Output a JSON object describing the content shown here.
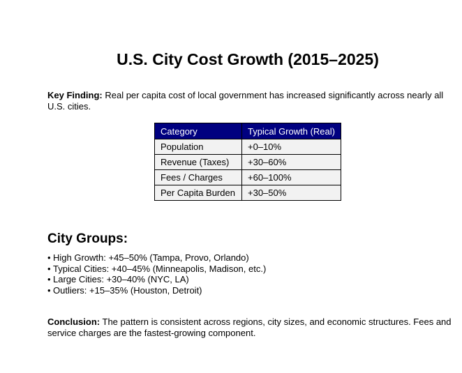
{
  "document": {
    "title": "U.S. City Cost Growth (2015–2025)",
    "key_finding": {
      "label": "Key Finding:",
      "text": "Real per capita cost of local government has increased significantly across nearly all U.S. cities."
    },
    "table": {
      "headers": [
        "Category",
        "Typical Growth (Real)"
      ],
      "rows": [
        [
          "Population",
          "+0–10%"
        ],
        [
          "Revenue (Taxes)",
          "+30–60%"
        ],
        [
          "Fees / Charges",
          "+60–100%"
        ],
        [
          "Per Capita Burden",
          "+30–50%"
        ]
      ],
      "header_color": "#000080",
      "cell_color": "#f2f2f2"
    },
    "city_groups": {
      "heading": "City Groups:",
      "items": [
        "High Growth: +45–50% (Tampa, Provo, Orlando)",
        "Typical Cities: +40–45% (Minneapolis, Madison, etc.)",
        "Large Cities: +30–40% (NYC, LA)",
        "Outliers: +15–35% (Houston, Detroit)"
      ]
    },
    "conclusion": {
      "label": "Conclusion:",
      "text": "The pattern is consistent across regions, city sizes, and economic structures. Fees and service charges are the fastest-growing component."
    }
  }
}
